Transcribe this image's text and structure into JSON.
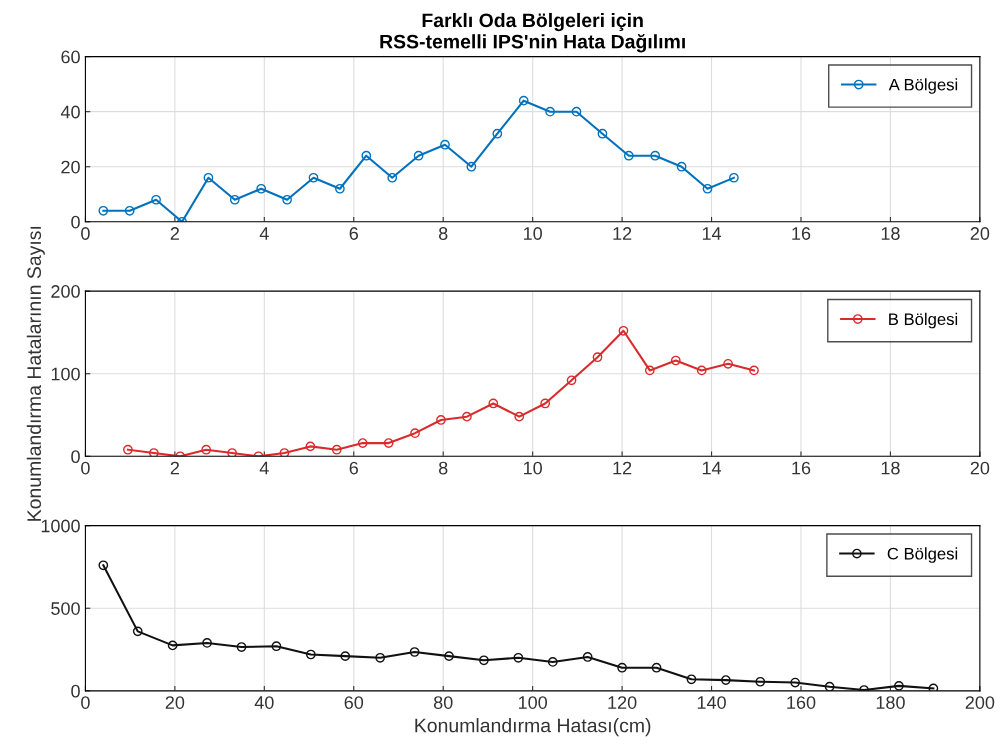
{
  "chart_data": [
    {
      "type": "line",
      "title": "Farklı Oda Bölgeleri için\nRSS-temelli IPS'nin Hata Dağılımı",
      "xlim": [
        0,
        20
      ],
      "xticks": [
        0,
        2,
        4,
        6,
        8,
        10,
        12,
        14,
        16,
        18,
        20
      ],
      "ylim": [
        0,
        60
      ],
      "yticks": [
        0,
        20,
        40,
        60
      ],
      "grid": true,
      "legend": "top right",
      "marker": "circle",
      "line_style": "solid",
      "series": [
        {
          "name": "A Bölgesi",
          "color": "#0072bd",
          "x": [
            0.4,
            0.99,
            1.58,
            2.16,
            2.75,
            3.34,
            3.93,
            4.51,
            5.1,
            5.69,
            6.28,
            6.86,
            7.45,
            8.04,
            8.63,
            9.21,
            9.8,
            10.39,
            10.98,
            11.56,
            12.15,
            12.74,
            13.33,
            13.91,
            14.5
          ],
          "values": [
            4,
            4,
            8,
            0,
            16,
            8,
            12,
            8,
            16,
            12,
            24,
            16,
            24,
            28,
            20,
            32,
            44,
            40,
            40,
            32,
            24,
            24,
            20,
            12,
            16
          ]
        }
      ]
    },
    {
      "type": "line",
      "ylabel": "Konumlandırma Hatalarının Sayısı",
      "xlim": [
        0,
        20
      ],
      "xticks": [
        0,
        2,
        4,
        6,
        8,
        10,
        12,
        14,
        16,
        18,
        20
      ],
      "ylim": [
        0,
        200
      ],
      "yticks": [
        0,
        100,
        200
      ],
      "grid": true,
      "legend": "top right",
      "marker": "circle",
      "line_style": "solid",
      "series": [
        {
          "name": "B Bölgesi",
          "color": "#d92b2b",
          "x": [
            0.95,
            1.53,
            2.12,
            2.7,
            3.28,
            3.87,
            4.45,
            5.03,
            5.62,
            6.2,
            6.78,
            7.37,
            7.95,
            8.53,
            9.12,
            9.7,
            10.28,
            10.87,
            11.45,
            12.03,
            12.62,
            13.2,
            13.78,
            14.37,
            14.95
          ],
          "values": [
            8,
            4,
            0,
            8,
            4,
            0,
            4,
            12,
            8,
            16,
            16,
            28,
            44,
            48,
            64,
            48,
            64,
            92,
            120,
            152,
            104,
            116,
            104,
            112,
            104
          ]
        }
      ]
    },
    {
      "type": "line",
      "xlabel": "Konumlandırma Hatası(cm)",
      "xlim": [
        0,
        200
      ],
      "xticks": [
        0,
        20,
        40,
        60,
        80,
        100,
        120,
        140,
        160,
        180,
        200
      ],
      "ylim": [
        0,
        1000
      ],
      "yticks": [
        0,
        500,
        1000
      ],
      "grid": true,
      "legend": "top right",
      "marker": "circle",
      "line_style": "solid",
      "series": [
        {
          "name": "C Bölgesi",
          "color": "#111111",
          "x": [
            4,
            11.7,
            19.5,
            27.2,
            34.9,
            42.7,
            50.4,
            58.1,
            65.9,
            73.6,
            81.3,
            89.1,
            96.8,
            104.5,
            112.3,
            120,
            127.7,
            135.5,
            143.2,
            150.9,
            158.7,
            166.4,
            174.1,
            181.9,
            189.6
          ],
          "values": [
            760,
            360,
            275,
            290,
            265,
            270,
            220,
            210,
            200,
            235,
            210,
            185,
            200,
            175,
            205,
            140,
            140,
            70,
            65,
            55,
            50,
            25,
            5,
            30,
            15
          ]
        }
      ]
    }
  ]
}
